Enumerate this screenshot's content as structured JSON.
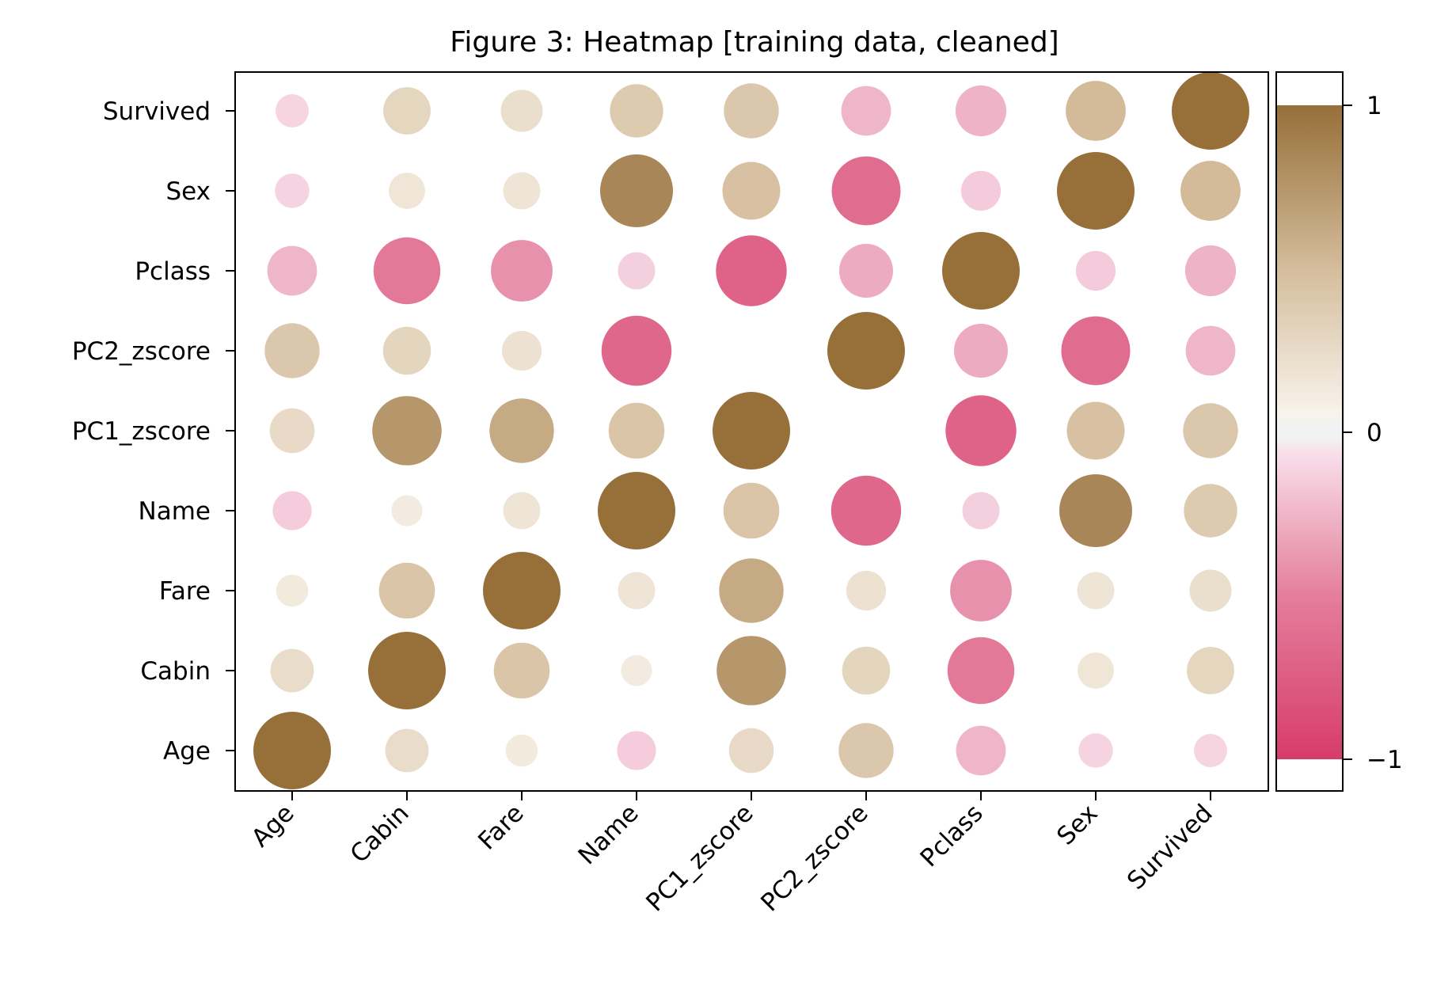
{
  "chart_data": {
    "type": "heatmap",
    "title": "Figure 3:  Heatmap [training data, cleaned]",
    "variables": [
      "Age",
      "Cabin",
      "Fare",
      "Name",
      "PC1_zscore",
      "PC2_zscore",
      "Pclass",
      "Sex",
      "Survived"
    ],
    "matrix": [
      [
        1.0,
        0.2,
        0.07,
        -0.14,
        0.22,
        0.4,
        -0.3,
        -0.09,
        -0.08
      ],
      [
        0.2,
        1.0,
        0.42,
        0.06,
        0.75,
        0.27,
        -0.68,
        0.11,
        0.26
      ],
      [
        0.07,
        0.42,
        1.0,
        0.12,
        0.62,
        0.15,
        -0.55,
        0.12,
        0.18
      ],
      [
        -0.14,
        0.06,
        0.12,
        1.0,
        0.42,
        -0.77,
        -0.12,
        0.85,
        0.37
      ],
      [
        0.22,
        0.75,
        0.62,
        0.42,
        1.0,
        0.0,
        -0.79,
        0.46,
        0.4
      ],
      [
        0.4,
        0.27,
        0.15,
        -0.77,
        0.0,
        1.0,
        -0.38,
        -0.74,
        -0.3
      ],
      [
        -0.3,
        -0.68,
        -0.55,
        -0.12,
        -0.79,
        -0.38,
        1.0,
        -0.15,
        -0.32
      ],
      [
        -0.09,
        0.11,
        0.12,
        0.85,
        0.46,
        -0.74,
        -0.15,
        1.0,
        0.51
      ],
      [
        -0.08,
        0.26,
        0.18,
        0.37,
        0.4,
        -0.3,
        -0.32,
        0.51,
        1.0
      ]
    ],
    "colorbar": {
      "ticks": [
        1,
        0,
        -1
      ],
      "tick_labels": [
        "1",
        "0",
        "−1"
      ],
      "range": [
        -1,
        1
      ]
    },
    "colors": {
      "positive": "#976f39",
      "neutral": "#f2f2f2",
      "negative": "#d73c6a"
    },
    "grid": false
  }
}
